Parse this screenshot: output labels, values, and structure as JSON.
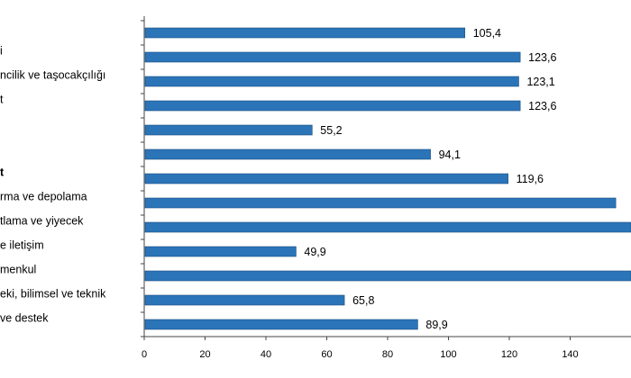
{
  "chart_data": {
    "type": "bar",
    "orientation": "horizontal",
    "categories": [
      "",
      "i",
      "ncilik ve taşocakçılığı",
      "t",
      "",
      "",
      "t",
      "rma ve depolama",
      "tlama ve yiyecek",
      "e iletişim",
      "menkul",
      "eki, bilimsel ve teknik",
      "ve destek"
    ],
    "bold_categories": [
      6
    ],
    "values": [
      105.4,
      123.6,
      123.1,
      123.6,
      55.2,
      94.1,
      119.6,
      155,
      165,
      49.9,
      165,
      65.8,
      89.9
    ],
    "value_labels": [
      "105,4",
      "123,6",
      "123,1",
      "123,6",
      "55,2",
      "94,1",
      "119,6",
      "",
      "",
      "49,9",
      "",
      "65,8",
      "89,9"
    ],
    "x_ticks": [
      0,
      20,
      40,
      60,
      80,
      100,
      120,
      140
    ],
    "x_tick_labels": [
      "0",
      "20",
      "40",
      "60",
      "80",
      "100",
      "120",
      "140"
    ],
    "xlim": [
      0,
      160
    ],
    "title": "",
    "xlabel": "",
    "ylabel": "",
    "grid": false,
    "legend": "none",
    "bar_color": "#2b74b8",
    "bar_edge_color": "#1c4f80"
  }
}
